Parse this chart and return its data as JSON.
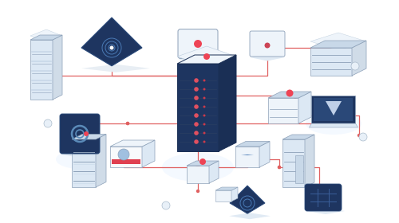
{
  "bg": "#ffffff",
  "line_color": "#e06060",
  "line_color2": "#cc4444",
  "dot_color": "#dd4444",
  "navy": "#1e3560",
  "navy2": "#263d6b",
  "navy3": "#1a2f55",
  "steel": "#8ca0b8",
  "light_blue": "#c8d8e8",
  "lighter_blue": "#dce8f4",
  "lightest": "#eef4fa",
  "white": "#f8fafc",
  "red": "#e05060",
  "mid_blue": "#4a7ab5",
  "pale": "#d0dce8"
}
